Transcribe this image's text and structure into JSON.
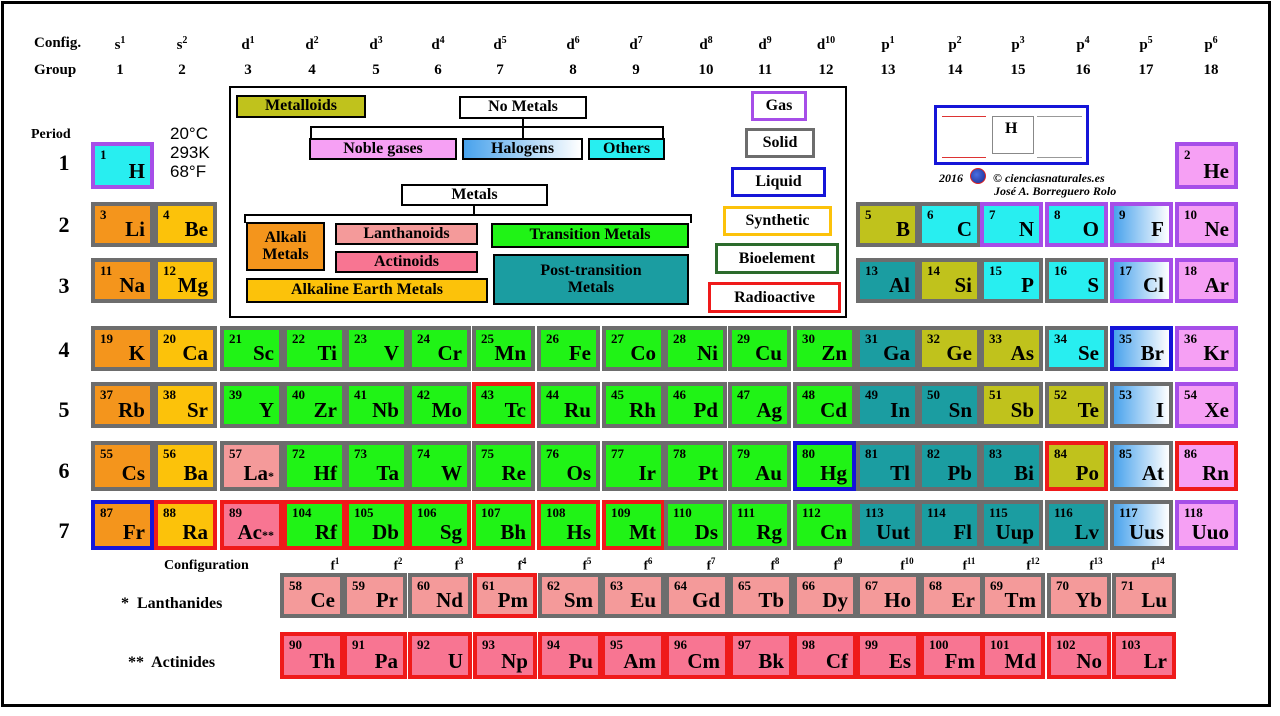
{
  "colors": {
    "alkali": "#f4951c",
    "alkaline_earth": "#fcc20a",
    "transition": "#20f316",
    "post_transition": "#1b9da1",
    "metalloid": "#c0c21c",
    "nonmetal_other": "#28eef0",
    "halogen": "#48a2ec",
    "noble": "#f6a0f4",
    "lanthanoid": "#f49a9a",
    "actinoid": "#f87592",
    "solid_border": "#6d6d6d",
    "liquid_border": "#1515d8",
    "gas_border": "#a64ee8",
    "radioactive_border": "#ef1a1a",
    "synthetic_border": "#fcc20a",
    "bioelement_border": "#2c6b2c"
  },
  "header": {
    "config_label": "Config.",
    "group_label": "Group",
    "period_label": "Period",
    "configs": [
      "s",
      "s",
      "d",
      "d",
      "d",
      "d",
      "d",
      "d",
      "d",
      "d",
      "d",
      "d",
      "p",
      "p",
      "p",
      "p",
      "p",
      "p"
    ],
    "config_sups": [
      "1",
      "2",
      "1",
      "2",
      "3",
      "4",
      "5",
      "6",
      "7",
      "8",
      "9",
      "10",
      "1",
      "2",
      "3",
      "4",
      "5",
      "6"
    ],
    "groups": [
      "1",
      "2",
      "3",
      "4",
      "5",
      "6",
      "7",
      "8",
      "9",
      "10",
      "11",
      "12",
      "13",
      "14",
      "15",
      "16",
      "17",
      "18"
    ]
  },
  "periods": [
    "1",
    "2",
    "3",
    "4",
    "5",
    "6",
    "7"
  ],
  "conditions": [
    "20°C",
    "293K",
    "68°F"
  ],
  "legend": {
    "metalloids": "Metalloids",
    "no_metals": "No Metals",
    "noble_gases": "Noble gases",
    "halogens": "Halogens",
    "others": "Others",
    "metals": "Metals",
    "alkali_metals_1": "Alkali",
    "alkali_metals_2": "Metals",
    "lanthanoids": "Lanthanoids",
    "actinoids": "Actinoids",
    "alkaline_earth": "Alkaline Earth Metals",
    "transition_metals": "Transition Metals",
    "post_transition_1": "Post-transition",
    "post_transition_2": "Metals"
  },
  "states": {
    "gas": "Gas",
    "solid": "Solid",
    "liquid": "Liquid",
    "synthetic": "Synthetic",
    "bioelement": "Bioelement",
    "radioactive": "Radioactive"
  },
  "credits": {
    "year": "2016",
    "site": "© cienciasnaturales.es",
    "author": "José A. Borreguero Rolo",
    "mini_symbol": "H"
  },
  "elements": [
    {
      "n": "1",
      "s": "H",
      "p": 1,
      "g": 1,
      "c": "oth",
      "b": "gas"
    },
    {
      "n": "2",
      "s": "He",
      "p": 1,
      "g": 18,
      "c": "nob",
      "b": "gas"
    },
    {
      "n": "3",
      "s": "Li",
      "p": 2,
      "g": 1,
      "c": "alk",
      "b": "sol"
    },
    {
      "n": "4",
      "s": "Be",
      "p": 2,
      "g": 2,
      "c": "ae",
      "b": "sol"
    },
    {
      "n": "5",
      "s": "B",
      "p": 2,
      "g": 13,
      "c": "mtd",
      "b": "sol"
    },
    {
      "n": "6",
      "s": "C",
      "p": 2,
      "g": 14,
      "c": "oth",
      "b": "sol"
    },
    {
      "n": "7",
      "s": "N",
      "p": 2,
      "g": 15,
      "c": "oth",
      "b": "gas"
    },
    {
      "n": "8",
      "s": "O",
      "p": 2,
      "g": 16,
      "c": "oth",
      "b": "gas"
    },
    {
      "n": "9",
      "s": "F",
      "p": 2,
      "g": 17,
      "c": "hal",
      "b": "gas"
    },
    {
      "n": "10",
      "s": "Ne",
      "p": 2,
      "g": 18,
      "c": "nob",
      "b": "gas"
    },
    {
      "n": "11",
      "s": "Na",
      "p": 3,
      "g": 1,
      "c": "alk",
      "b": "sol"
    },
    {
      "n": "12",
      "s": "Mg",
      "p": 3,
      "g": 2,
      "c": "ae",
      "b": "sol"
    },
    {
      "n": "13",
      "s": "Al",
      "p": 3,
      "g": 13,
      "c": "pt",
      "b": "sol"
    },
    {
      "n": "14",
      "s": "Si",
      "p": 3,
      "g": 14,
      "c": "mtd",
      "b": "sol"
    },
    {
      "n": "15",
      "s": "P",
      "p": 3,
      "g": 15,
      "c": "oth",
      "b": "sol"
    },
    {
      "n": "16",
      "s": "S",
      "p": 3,
      "g": 16,
      "c": "oth",
      "b": "sol"
    },
    {
      "n": "17",
      "s": "Cl",
      "p": 3,
      "g": 17,
      "c": "hal",
      "b": "gas"
    },
    {
      "n": "18",
      "s": "Ar",
      "p": 3,
      "g": 18,
      "c": "nob",
      "b": "gas"
    },
    {
      "n": "19",
      "s": "K",
      "p": 4,
      "g": 1,
      "c": "alk",
      "b": "sol"
    },
    {
      "n": "20",
      "s": "Ca",
      "p": 4,
      "g": 2,
      "c": "ae",
      "b": "sol"
    },
    {
      "n": "21",
      "s": "Sc",
      "p": 4,
      "g": 3,
      "c": "tm",
      "b": "sol"
    },
    {
      "n": "22",
      "s": "Ti",
      "p": 4,
      "g": 4,
      "c": "tm",
      "b": "sol"
    },
    {
      "n": "23",
      "s": "V",
      "p": 4,
      "g": 5,
      "c": "tm",
      "b": "sol"
    },
    {
      "n": "24",
      "s": "Cr",
      "p": 4,
      "g": 6,
      "c": "tm",
      "b": "sol"
    },
    {
      "n": "25",
      "s": "Mn",
      "p": 4,
      "g": 7,
      "c": "tm",
      "b": "sol"
    },
    {
      "n": "26",
      "s": "Fe",
      "p": 4,
      "g": 8,
      "c": "tm",
      "b": "sol"
    },
    {
      "n": "27",
      "s": "Co",
      "p": 4,
      "g": 9,
      "c": "tm",
      "b": "sol"
    },
    {
      "n": "28",
      "s": "Ni",
      "p": 4,
      "g": 10,
      "c": "tm",
      "b": "sol"
    },
    {
      "n": "29",
      "s": "Cu",
      "p": 4,
      "g": 11,
      "c": "tm",
      "b": "sol"
    },
    {
      "n": "30",
      "s": "Zn",
      "p": 4,
      "g": 12,
      "c": "tm",
      "b": "sol"
    },
    {
      "n": "31",
      "s": "Ga",
      "p": 4,
      "g": 13,
      "c": "pt",
      "b": "sol"
    },
    {
      "n": "32",
      "s": "Ge",
      "p": 4,
      "g": 14,
      "c": "mtd",
      "b": "sol"
    },
    {
      "n": "33",
      "s": "As",
      "p": 4,
      "g": 15,
      "c": "mtd",
      "b": "sol"
    },
    {
      "n": "34",
      "s": "Se",
      "p": 4,
      "g": 16,
      "c": "oth",
      "b": "sol"
    },
    {
      "n": "35",
      "s": "Br",
      "p": 4,
      "g": 17,
      "c": "hal",
      "b": "liq"
    },
    {
      "n": "36",
      "s": "Kr",
      "p": 4,
      "g": 18,
      "c": "nob",
      "b": "gas"
    },
    {
      "n": "37",
      "s": "Rb",
      "p": 5,
      "g": 1,
      "c": "alk",
      "b": "sol"
    },
    {
      "n": "38",
      "s": "Sr",
      "p": 5,
      "g": 2,
      "c": "ae",
      "b": "sol"
    },
    {
      "n": "39",
      "s": "Y",
      "p": 5,
      "g": 3,
      "c": "tm",
      "b": "sol"
    },
    {
      "n": "40",
      "s": "Zr",
      "p": 5,
      "g": 4,
      "c": "tm",
      "b": "sol"
    },
    {
      "n": "41",
      "s": "Nb",
      "p": 5,
      "g": 5,
      "c": "tm",
      "b": "sol"
    },
    {
      "n": "42",
      "s": "Mo",
      "p": 5,
      "g": 6,
      "c": "tm",
      "b": "sol"
    },
    {
      "n": "43",
      "s": "Tc",
      "p": 5,
      "g": 7,
      "c": "tm",
      "b": "rad"
    },
    {
      "n": "44",
      "s": "Ru",
      "p": 5,
      "g": 8,
      "c": "tm",
      "b": "sol"
    },
    {
      "n": "45",
      "s": "Rh",
      "p": 5,
      "g": 9,
      "c": "tm",
      "b": "sol"
    },
    {
      "n": "46",
      "s": "Pd",
      "p": 5,
      "g": 10,
      "c": "tm",
      "b": "sol"
    },
    {
      "n": "47",
      "s": "Ag",
      "p": 5,
      "g": 11,
      "c": "tm",
      "b": "sol"
    },
    {
      "n": "48",
      "s": "Cd",
      "p": 5,
      "g": 12,
      "c": "tm",
      "b": "sol"
    },
    {
      "n": "49",
      "s": "In",
      "p": 5,
      "g": 13,
      "c": "pt",
      "b": "sol"
    },
    {
      "n": "50",
      "s": "Sn",
      "p": 5,
      "g": 14,
      "c": "pt",
      "b": "sol"
    },
    {
      "n": "51",
      "s": "Sb",
      "p": 5,
      "g": 15,
      "c": "mtd",
      "b": "sol"
    },
    {
      "n": "52",
      "s": "Te",
      "p": 5,
      "g": 16,
      "c": "mtd",
      "b": "sol"
    },
    {
      "n": "53",
      "s": "I",
      "p": 5,
      "g": 17,
      "c": "hal",
      "b": "sol"
    },
    {
      "n": "54",
      "s": "Xe",
      "p": 5,
      "g": 18,
      "c": "nob",
      "b": "gas"
    },
    {
      "n": "55",
      "s": "Cs",
      "p": 6,
      "g": 1,
      "c": "alk",
      "b": "sol"
    },
    {
      "n": "56",
      "s": "Ba",
      "p": 6,
      "g": 2,
      "c": "ae",
      "b": "sol"
    },
    {
      "n": "57",
      "s": "La",
      "p": 6,
      "g": 3,
      "c": "lan",
      "b": "sol",
      "a": "*"
    },
    {
      "n": "72",
      "s": "Hf",
      "p": 6,
      "g": 4,
      "c": "tm",
      "b": "sol"
    },
    {
      "n": "73",
      "s": "Ta",
      "p": 6,
      "g": 5,
      "c": "tm",
      "b": "sol"
    },
    {
      "n": "74",
      "s": "W",
      "p": 6,
      "g": 6,
      "c": "tm",
      "b": "sol"
    },
    {
      "n": "75",
      "s": "Re",
      "p": 6,
      "g": 7,
      "c": "tm",
      "b": "sol"
    },
    {
      "n": "76",
      "s": "Os",
      "p": 6,
      "g": 8,
      "c": "tm",
      "b": "sol"
    },
    {
      "n": "77",
      "s": "Ir",
      "p": 6,
      "g": 9,
      "c": "tm",
      "b": "sol"
    },
    {
      "n": "78",
      "s": "Pt",
      "p": 6,
      "g": 10,
      "c": "tm",
      "b": "sol"
    },
    {
      "n": "79",
      "s": "Au",
      "p": 6,
      "g": 11,
      "c": "tm",
      "b": "sol"
    },
    {
      "n": "80",
      "s": "Hg",
      "p": 6,
      "g": 12,
      "c": "tm",
      "b": "liq"
    },
    {
      "n": "81",
      "s": "Tl",
      "p": 6,
      "g": 13,
      "c": "pt",
      "b": "sol"
    },
    {
      "n": "82",
      "s": "Pb",
      "p": 6,
      "g": 14,
      "c": "pt",
      "b": "sol"
    },
    {
      "n": "83",
      "s": "Bi",
      "p": 6,
      "g": 15,
      "c": "pt",
      "b": "sol"
    },
    {
      "n": "84",
      "s": "Po",
      "p": 6,
      "g": 16,
      "c": "mtd",
      "b": "rad"
    },
    {
      "n": "85",
      "s": "At",
      "p": 6,
      "g": 17,
      "c": "hal",
      "b": "sol"
    },
    {
      "n": "86",
      "s": "Rn",
      "p": 6,
      "g": 18,
      "c": "nob",
      "b": "rad"
    },
    {
      "n": "87",
      "s": "Fr",
      "p": 7,
      "g": 1,
      "c": "alk",
      "b": "liq"
    },
    {
      "n": "88",
      "s": "Ra",
      "p": 7,
      "g": 2,
      "c": "ae",
      "b": "rad"
    },
    {
      "n": "89",
      "s": "Ac",
      "p": 7,
      "g": 3,
      "c": "act",
      "b": "rad",
      "a": "**"
    },
    {
      "n": "104",
      "s": "Rf",
      "p": 7,
      "g": 4,
      "c": "tm",
      "b": "rad"
    },
    {
      "n": "105",
      "s": "Db",
      "p": 7,
      "g": 5,
      "c": "tm",
      "b": "rad"
    },
    {
      "n": "106",
      "s": "Sg",
      "p": 7,
      "g": 6,
      "c": "tm",
      "b": "rad"
    },
    {
      "n": "107",
      "s": "Bh",
      "p": 7,
      "g": 7,
      "c": "tm",
      "b": "rad"
    },
    {
      "n": "108",
      "s": "Hs",
      "p": 7,
      "g": 8,
      "c": "tm",
      "b": "rad"
    },
    {
      "n": "109",
      "s": "Mt",
      "p": 7,
      "g": 9,
      "c": "tm",
      "b": "rad"
    },
    {
      "n": "110",
      "s": "Ds",
      "p": 7,
      "g": 10,
      "c": "tm",
      "b": "sol"
    },
    {
      "n": "111",
      "s": "Rg",
      "p": 7,
      "g": 11,
      "c": "tm",
      "b": "sol"
    },
    {
      "n": "112",
      "s": "Cn",
      "p": 7,
      "g": 12,
      "c": "tm",
      "b": "sol"
    },
    {
      "n": "113",
      "s": "Uut",
      "p": 7,
      "g": 13,
      "c": "pt",
      "b": "sol"
    },
    {
      "n": "114",
      "s": "Fl",
      "p": 7,
      "g": 14,
      "c": "pt",
      "b": "sol"
    },
    {
      "n": "115",
      "s": "Uup",
      "p": 7,
      "g": 15,
      "c": "pt",
      "b": "sol"
    },
    {
      "n": "116",
      "s": "Lv",
      "p": 7,
      "g": 16,
      "c": "pt",
      "b": "sol"
    },
    {
      "n": "117",
      "s": "Uus",
      "p": 7,
      "g": 17,
      "c": "hal",
      "b": "sol"
    },
    {
      "n": "118",
      "s": "Uuo",
      "p": 7,
      "g": 18,
      "c": "nob",
      "b": "gas"
    }
  ],
  "fblock": {
    "configuration_label": "Configuration",
    "configs": [
      "f",
      "f",
      "f",
      "f",
      "f",
      "f",
      "f",
      "f",
      "f",
      "f",
      "f",
      "f",
      "f",
      "f"
    ],
    "config_sups": [
      "1",
      "2",
      "3",
      "4",
      "5",
      "6",
      "7",
      "8",
      "9",
      "10",
      "11",
      "12",
      "13",
      "14"
    ],
    "lanthanides_label": "*  Lanthanides",
    "actinides_label": "**  Actinides",
    "lanthanides": [
      {
        "n": "58",
        "s": "Ce",
        "b": "sol"
      },
      {
        "n": "59",
        "s": "Pr",
        "b": "sol"
      },
      {
        "n": "60",
        "s": "Nd",
        "b": "sol"
      },
      {
        "n": "61",
        "s": "Pm",
        "b": "rad"
      },
      {
        "n": "62",
        "s": "Sm",
        "b": "sol"
      },
      {
        "n": "63",
        "s": "Eu",
        "b": "sol"
      },
      {
        "n": "64",
        "s": "Gd",
        "b": "sol"
      },
      {
        "n": "65",
        "s": "Tb",
        "b": "sol"
      },
      {
        "n": "66",
        "s": "Dy",
        "b": "sol"
      },
      {
        "n": "67",
        "s": "Ho",
        "b": "sol"
      },
      {
        "n": "68",
        "s": "Er",
        "b": "sol"
      },
      {
        "n": "69",
        "s": "Tm",
        "b": "sol"
      },
      {
        "n": "70",
        "s": "Yb",
        "b": "sol"
      },
      {
        "n": "71",
        "s": "Lu",
        "b": "sol"
      }
    ],
    "actinides": [
      {
        "n": "90",
        "s": "Th",
        "b": "rad"
      },
      {
        "n": "91",
        "s": "Pa",
        "b": "rad"
      },
      {
        "n": "92",
        "s": "U",
        "b": "rad"
      },
      {
        "n": "93",
        "s": "Np",
        "b": "rad"
      },
      {
        "n": "94",
        "s": "Pu",
        "b": "rad"
      },
      {
        "n": "95",
        "s": "Am",
        "b": "rad"
      },
      {
        "n": "96",
        "s": "Cm",
        "b": "rad"
      },
      {
        "n": "97",
        "s": "Bk",
        "b": "rad"
      },
      {
        "n": "98",
        "s": "Cf",
        "b": "rad"
      },
      {
        "n": "99",
        "s": "Es",
        "b": "rad"
      },
      {
        "n": "100",
        "s": "Fm",
        "b": "rad"
      },
      {
        "n": "101",
        "s": "Md",
        "b": "rad"
      },
      {
        "n": "102",
        "s": "No",
        "b": "rad"
      },
      {
        "n": "103",
        "s": "Lr",
        "b": "rad"
      }
    ]
  }
}
